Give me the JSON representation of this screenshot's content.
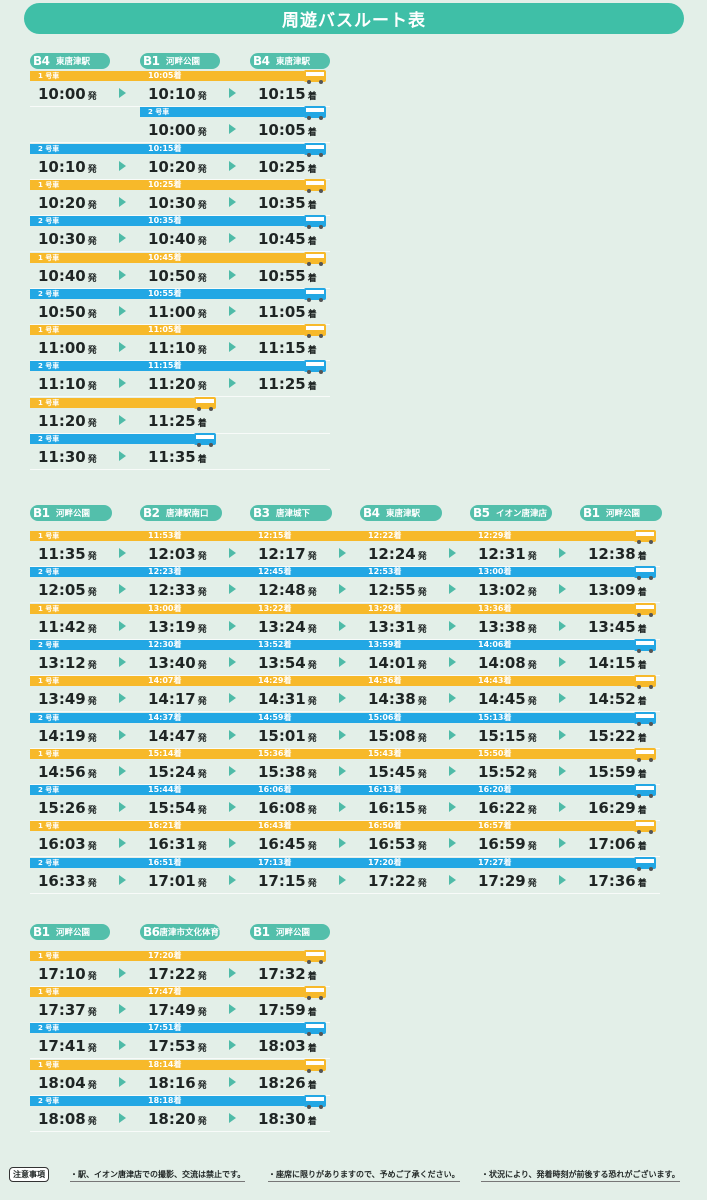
{
  "title": "周遊バスルート表",
  "dep_suffix": "発",
  "arr_suffix": "着",
  "pass_suffix": "着",
  "car1": "1 号車",
  "car2": "2 号車",
  "colors": {
    "teal": "#53bfab",
    "yellow": "#f7b92a",
    "blue": "#22a7e4",
    "background": "#e3efe8"
  },
  "icons": {
    "bus": "bus-icon",
    "arrow": "triangle-right-icon"
  },
  "sections": [
    {
      "id": "s1",
      "stops": [
        {
          "code": "B4",
          "name": "東唐津駅"
        },
        {
          "code": "B1",
          "name": "河畔公園"
        },
        {
          "code": "B4",
          "name": "東唐津駅"
        }
      ],
      "trips": [
        {
          "car": 1,
          "times": [
            "10:00",
            "10:10",
            "10:15"
          ],
          "pass": [
            "10:05"
          ]
        },
        {
          "car": 2,
          "start": 1,
          "times": [
            "10:00",
            "10:05"
          ],
          "pass": []
        },
        {
          "car": 2,
          "times": [
            "10:10",
            "10:20",
            "10:25"
          ],
          "pass": [
            "10:15"
          ]
        },
        {
          "car": 1,
          "times": [
            "10:20",
            "10:30",
            "10:35"
          ],
          "pass": [
            "10:25"
          ]
        },
        {
          "car": 2,
          "times": [
            "10:30",
            "10:40",
            "10:45"
          ],
          "pass": [
            "10:35"
          ]
        },
        {
          "car": 1,
          "times": [
            "10:40",
            "10:50",
            "10:55"
          ],
          "pass": [
            "10:45"
          ]
        },
        {
          "car": 2,
          "times": [
            "10:50",
            "11:00",
            "11:05"
          ],
          "pass": [
            "10:55"
          ]
        },
        {
          "car": 1,
          "times": [
            "11:00",
            "11:10",
            "11:15"
          ],
          "pass": [
            "11:05"
          ]
        },
        {
          "car": 2,
          "times": [
            "11:10",
            "11:20",
            "11:25"
          ],
          "pass": [
            "11:15"
          ]
        },
        {
          "car": 1,
          "times": [
            "11:20",
            "11:25"
          ],
          "pass": []
        },
        {
          "car": 2,
          "times": [
            "11:30",
            "11:35"
          ],
          "pass": []
        }
      ]
    },
    {
      "id": "s2",
      "stops": [
        {
          "code": "B1",
          "name": "河畔公園"
        },
        {
          "code": "B2",
          "name": "唐津駅南口"
        },
        {
          "code": "B3",
          "name": "唐津城下"
        },
        {
          "code": "B4",
          "name": "東唐津駅"
        },
        {
          "code": "B5",
          "name": "イオン唐津店"
        },
        {
          "code": "B1",
          "name": "河畔公園"
        }
      ],
      "trips": [
        {
          "car": 1,
          "times": [
            "11:35",
            "12:03",
            "12:17",
            "12:24",
            "12:31",
            "12:38"
          ],
          "pass": [
            "11:53",
            "12:15",
            "12:22",
            "12:29"
          ]
        },
        {
          "car": 2,
          "times": [
            "12:05",
            "12:33",
            "12:48",
            "12:55",
            "13:02",
            "13:09"
          ],
          "pass": [
            "12:23",
            "12:45",
            "12:53",
            "13:00"
          ]
        },
        {
          "car": 1,
          "times": [
            "11:42",
            "13:19",
            "13:24",
            "13:31",
            "13:38",
            "13:45"
          ],
          "pass": [
            "13:00",
            "13:22",
            "13:29",
            "13:36"
          ]
        },
        {
          "car": 2,
          "times": [
            "13:12",
            "13:40",
            "13:54",
            "14:01",
            "14:08",
            "14:15"
          ],
          "pass": [
            "12:30",
            "13:52",
            "13:59",
            "14:06"
          ]
        },
        {
          "car": 1,
          "times": [
            "13:49",
            "14:17",
            "14:31",
            "14:38",
            "14:45",
            "14:52"
          ],
          "pass": [
            "14:07",
            "14:29",
            "14:36",
            "14:43"
          ]
        },
        {
          "car": 2,
          "times": [
            "14:19",
            "14:47",
            "15:01",
            "15:08",
            "15:15",
            "15:22"
          ],
          "pass": [
            "14:37",
            "14:59",
            "15:06",
            "15:13"
          ]
        },
        {
          "car": 1,
          "times": [
            "14:56",
            "15:24",
            "15:38",
            "15:45",
            "15:52",
            "15:59"
          ],
          "pass": [
            "15:14",
            "15:36",
            "15:43",
            "15:50"
          ]
        },
        {
          "car": 2,
          "times": [
            "15:26",
            "15:54",
            "16:08",
            "16:15",
            "16:22",
            "16:29"
          ],
          "pass": [
            "15:44",
            "16:06",
            "16:13",
            "16:20"
          ]
        },
        {
          "car": 1,
          "times": [
            "16:03",
            "16:31",
            "16:45",
            "16:53",
            "16:59",
            "17:06"
          ],
          "pass": [
            "16:21",
            "16:43",
            "16:50",
            "16:57"
          ]
        },
        {
          "car": 2,
          "times": [
            "16:33",
            "17:01",
            "17:15",
            "17:22",
            "17:29",
            "17:36"
          ],
          "pass": [
            "16:51",
            "17:13",
            "17:20",
            "17:27"
          ]
        }
      ]
    },
    {
      "id": "s3",
      "stops": [
        {
          "code": "B1",
          "name": "河畔公園"
        },
        {
          "code": "B6",
          "name": "唐津市文化体育館"
        },
        {
          "code": "B1",
          "name": "河畔公園"
        }
      ],
      "trips": [
        {
          "car": 1,
          "times": [
            "17:10",
            "17:22",
            "17:32"
          ],
          "pass": [
            "17:20"
          ]
        },
        {
          "car": 1,
          "times": [
            "17:37",
            "17:49",
            "17:59"
          ],
          "pass": [
            "17:47"
          ]
        },
        {
          "car": 2,
          "times": [
            "17:41",
            "17:53",
            "18:03"
          ],
          "pass": [
            "17:51"
          ]
        },
        {
          "car": 1,
          "times": [
            "18:04",
            "18:16",
            "18:26"
          ],
          "pass": [
            "18:14"
          ]
        },
        {
          "car": 2,
          "times": [
            "18:08",
            "18:20",
            "18:30"
          ],
          "pass": [
            "18:18"
          ]
        }
      ]
    }
  ],
  "notes": {
    "label": "注意事項",
    "items": [
      "・駅、イオン唐津店での撮影、交流は禁止です。",
      "・座席に限りがありますので、予めご了承ください。",
      "・状況により、発着時刻が前後する恐れがございます。"
    ]
  }
}
